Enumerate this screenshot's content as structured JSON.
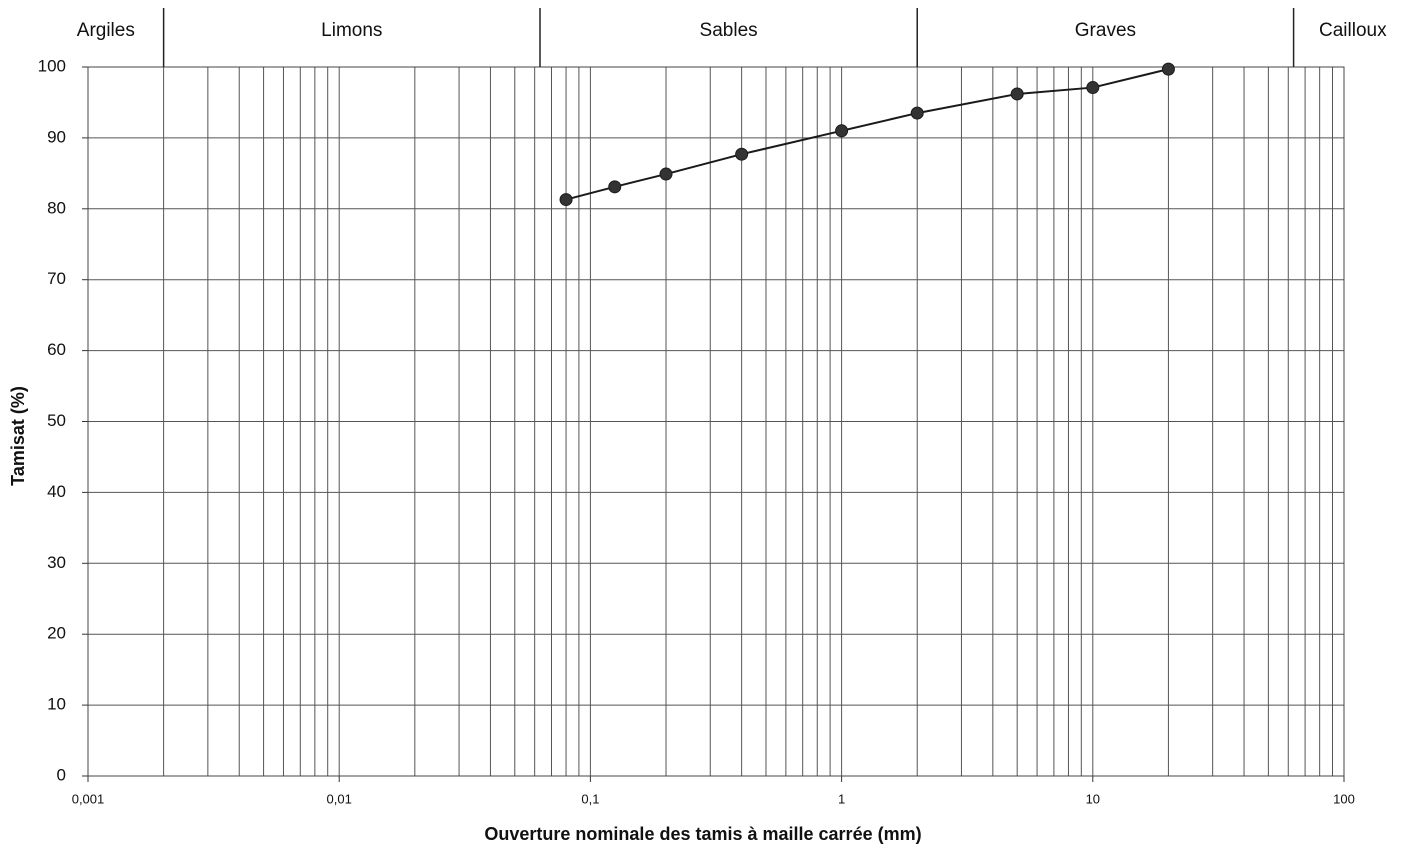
{
  "chart_data": {
    "type": "line",
    "log_x": true,
    "xlabel": "Ouverture nominale des tamis à maille carrée (mm)",
    "ylabel": "Tamisat (%)",
    "x": [
      0.08,
      0.125,
      0.2,
      0.4,
      1,
      2,
      5,
      10,
      20
    ],
    "series": [
      {
        "color": "#1a1a1a",
        "values": [
          81.3,
          83.1,
          84.9,
          87.7,
          91.0,
          93.5,
          96.2,
          97.1,
          99.7
        ]
      }
    ],
    "xlim": [
      0.001,
      100
    ],
    "xticks": [
      {
        "value": 0.001,
        "label": "0,001"
      },
      {
        "value": 0.01,
        "label": "0,01"
      },
      {
        "value": 0.1,
        "label": "0,1"
      },
      1,
      10,
      100
    ],
    "ylim": [
      0,
      100
    ],
    "yticks": [
      0,
      10,
      20,
      30,
      40,
      50,
      60,
      70,
      80,
      90,
      100
    ],
    "grid": true,
    "minor_grid": true,
    "zones": [
      "Argiles",
      "Limons",
      "Sables",
      "Graves",
      "Cailloux"
    ],
    "zone_boundaries": [
      0.002,
      0.063,
      2,
      63
    ]
  }
}
